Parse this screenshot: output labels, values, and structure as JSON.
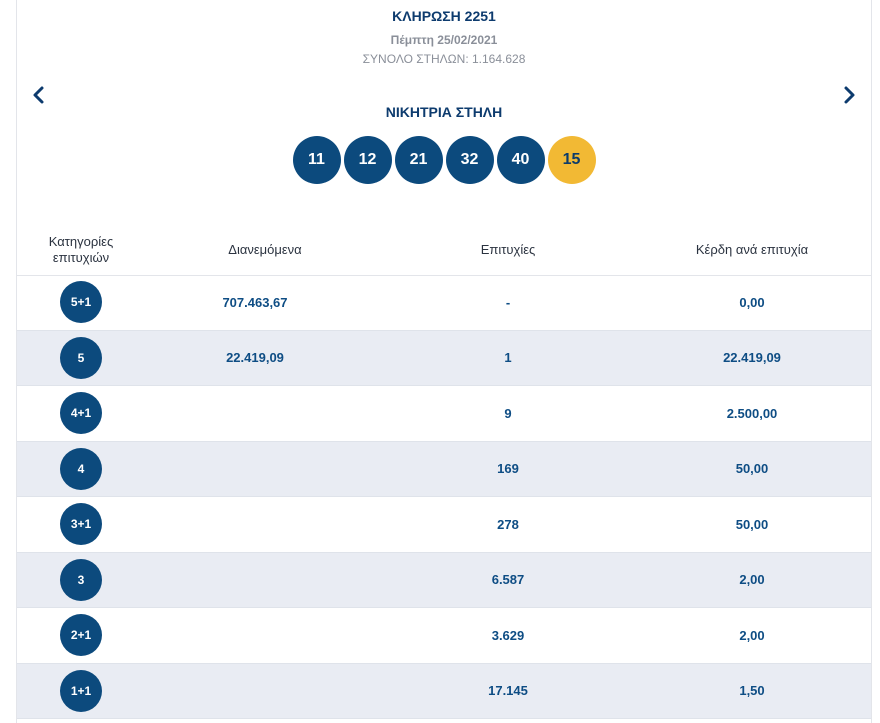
{
  "draw": {
    "title": "ΚΛΗΡΩΣΗ 2251",
    "date": "Πέμπτη 25/02/2021",
    "total_columns": "ΣΥΝΟΛΟ ΣΤΗΛΩΝ: 1.164.628"
  },
  "nav": {
    "prev_icon": "chevron-left-icon",
    "next_icon": "chevron-right-icon"
  },
  "winning": {
    "label": "ΝΙΚΗΤΡΙΑ ΣΤΗΛΗ",
    "numbers": [
      "11",
      "12",
      "21",
      "32",
      "40"
    ],
    "joker": "15"
  },
  "colors": {
    "ball": "#0c4a7d",
    "joker": "#f2b934",
    "accent": "#0d3b6e",
    "row_alt": "#e9ecf3"
  },
  "table": {
    "headers": {
      "category_line1": "Κατηγορίες",
      "category_line2": "επιτυχιών",
      "distributed": "Διανεμόμενα",
      "winners": "Επιτυχίες",
      "prize": "Κέρδη ανά επιτυχία"
    },
    "rows": [
      {
        "category": "5+1",
        "distributed": "707.463,67",
        "winners": "-",
        "prize": "0,00"
      },
      {
        "category": "5",
        "distributed": "22.419,09",
        "winners": "1",
        "prize": "22.419,09"
      },
      {
        "category": "4+1",
        "distributed": "",
        "winners": "9",
        "prize": "2.500,00"
      },
      {
        "category": "4",
        "distributed": "",
        "winners": "169",
        "prize": "50,00"
      },
      {
        "category": "3+1",
        "distributed": "",
        "winners": "278",
        "prize": "50,00"
      },
      {
        "category": "3",
        "distributed": "",
        "winners": "6.587",
        "prize": "2,00"
      },
      {
        "category": "2+1",
        "distributed": "",
        "winners": "3.629",
        "prize": "2,00"
      },
      {
        "category": "1+1",
        "distributed": "",
        "winners": "17.145",
        "prize": "1,50"
      }
    ]
  }
}
